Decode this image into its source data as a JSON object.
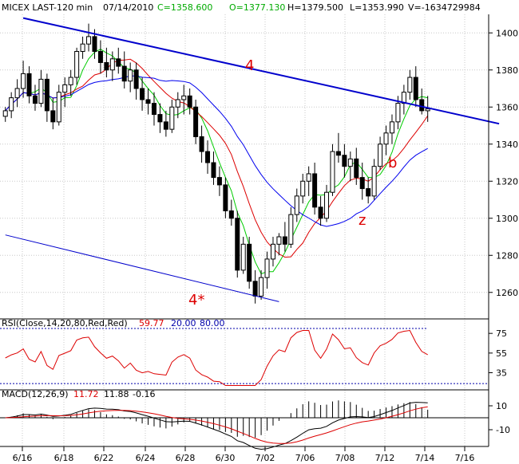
{
  "header": {
    "symbol": "MICEX LAST-120 min",
    "date": "07/14/2010",
    "close": "C=1358.600",
    "open": "O=1377.130",
    "high": "H=1379.500",
    "low": "L=1353.990",
    "volume": "V=-1634729984"
  },
  "colors": {
    "bg": "#ffffff",
    "grid": "#c8c8c8",
    "candle": "#000000",
    "ma_fast": "#00cc00",
    "ma_mid": "#dd0000",
    "ma_slow": "#0000ee",
    "trend": "#0000cc",
    "annot": "#dd0000",
    "rsi_line": "#dd0000",
    "rsi_level": "#0000aa",
    "macd_line": "#000000",
    "macd_signal": "#dd0000"
  },
  "annotations": {
    "wave4": "4",
    "wave4star": "4*",
    "wave_b": "b",
    "wave_z": "z"
  },
  "rsi_panel": {
    "legend_prefix": "RSI(Close,14,20,80,Red,Red)",
    "value": "59.77",
    "lo": "20.00",
    "hi": "80.00",
    "ticks": [
      "75",
      "55",
      "35"
    ]
  },
  "macd_panel": {
    "legend_prefix": "MACD(12,26,9)",
    "macd": "11.72",
    "signal": "11.88",
    "hist": "-0.16",
    "ticks": [
      "10",
      "-10"
    ]
  },
  "chart_data": {
    "type": "candlestick",
    "price_ticks": [
      1400,
      1380,
      1360,
      1340,
      1320,
      1300,
      1280,
      1260
    ],
    "ylim": [
      1247,
      1410
    ],
    "x_labels": [
      "6/16",
      "6/18",
      "6/22",
      "6/24",
      "6/28",
      "6/30",
      "7/02",
      "7/06",
      "7/08",
      "7/12",
      "7/14",
      "7/16"
    ],
    "trendlines": [
      {
        "name": "4",
        "x0": 3,
        "y0": 1408,
        "x1": 83,
        "y1": 1351
      },
      {
        "name": "4*",
        "x0": 0,
        "y0": 1291,
        "x1": 46,
        "y1": 1255
      }
    ],
    "candles": [
      [
        1355,
        1360,
        1352,
        1358
      ],
      [
        1358,
        1368,
        1354,
        1365
      ],
      [
        1365,
        1375,
        1360,
        1370
      ],
      [
        1370,
        1385,
        1365,
        1378
      ],
      [
        1378,
        1382,
        1362,
        1366
      ],
      [
        1366,
        1372,
        1358,
        1362
      ],
      [
        1362,
        1380,
        1360,
        1375
      ],
      [
        1375,
        1378,
        1352,
        1358
      ],
      [
        1358,
        1365,
        1348,
        1352
      ],
      [
        1352,
        1372,
        1350,
        1368
      ],
      [
        1368,
        1376,
        1360,
        1372
      ],
      [
        1372,
        1380,
        1366,
        1376
      ],
      [
        1376,
        1392,
        1372,
        1390
      ],
      [
        1390,
        1398,
        1386,
        1394
      ],
      [
        1394,
        1405,
        1390,
        1398
      ],
      [
        1398,
        1402,
        1386,
        1390
      ],
      [
        1390,
        1396,
        1378,
        1384
      ],
      [
        1384,
        1392,
        1376,
        1380
      ],
      [
        1380,
        1390,
        1374,
        1386
      ],
      [
        1386,
        1392,
        1378,
        1382
      ],
      [
        1382,
        1390,
        1370,
        1374
      ],
      [
        1374,
        1384,
        1368,
        1380
      ],
      [
        1380,
        1384,
        1364,
        1370
      ],
      [
        1370,
        1376,
        1358,
        1364
      ],
      [
        1364,
        1370,
        1356,
        1362
      ],
      [
        1362,
        1368,
        1350,
        1356
      ],
      [
        1356,
        1362,
        1346,
        1352
      ],
      [
        1352,
        1358,
        1344,
        1348
      ],
      [
        1348,
        1364,
        1346,
        1360
      ],
      [
        1360,
        1368,
        1354,
        1364
      ],
      [
        1364,
        1372,
        1356,
        1366
      ],
      [
        1366,
        1370,
        1356,
        1360
      ],
      [
        1360,
        1364,
        1340,
        1344
      ],
      [
        1344,
        1350,
        1330,
        1336
      ],
      [
        1336,
        1342,
        1324,
        1330
      ],
      [
        1330,
        1336,
        1318,
        1322
      ],
      [
        1322,
        1328,
        1312,
        1318
      ],
      [
        1318,
        1322,
        1300,
        1304
      ],
      [
        1304,
        1310,
        1296,
        1300
      ],
      [
        1300,
        1304,
        1268,
        1272
      ],
      [
        1272,
        1290,
        1270,
        1286
      ],
      [
        1286,
        1290,
        1262,
        1266
      ],
      [
        1266,
        1272,
        1254,
        1258
      ],
      [
        1258,
        1272,
        1256,
        1268
      ],
      [
        1268,
        1282,
        1262,
        1278
      ],
      [
        1278,
        1290,
        1274,
        1286
      ],
      [
        1286,
        1292,
        1280,
        1290
      ],
      [
        1290,
        1298,
        1282,
        1286
      ],
      [
        1286,
        1306,
        1284,
        1302
      ],
      [
        1302,
        1316,
        1298,
        1312
      ],
      [
        1312,
        1324,
        1308,
        1320
      ],
      [
        1320,
        1328,
        1312,
        1324
      ],
      [
        1324,
        1330,
        1302,
        1306
      ],
      [
        1306,
        1312,
        1296,
        1300
      ],
      [
        1300,
        1318,
        1298,
        1314
      ],
      [
        1314,
        1340,
        1312,
        1336
      ],
      [
        1336,
        1346,
        1330,
        1334
      ],
      [
        1334,
        1340,
        1322,
        1328
      ],
      [
        1328,
        1336,
        1320,
        1332
      ],
      [
        1332,
        1338,
        1318,
        1322
      ],
      [
        1322,
        1330,
        1310,
        1316
      ],
      [
        1316,
        1322,
        1308,
        1312
      ],
      [
        1312,
        1332,
        1310,
        1328
      ],
      [
        1328,
        1344,
        1326,
        1340
      ],
      [
        1340,
        1350,
        1334,
        1346
      ],
      [
        1346,
        1356,
        1340,
        1352
      ],
      [
        1352,
        1366,
        1348,
        1362
      ],
      [
        1362,
        1372,
        1356,
        1368
      ],
      [
        1368,
        1380,
        1364,
        1376
      ],
      [
        1376,
        1382,
        1360,
        1364
      ],
      [
        1364,
        1370,
        1356,
        1358
      ],
      [
        1358,
        1366,
        1352,
        1359
      ]
    ]
  }
}
